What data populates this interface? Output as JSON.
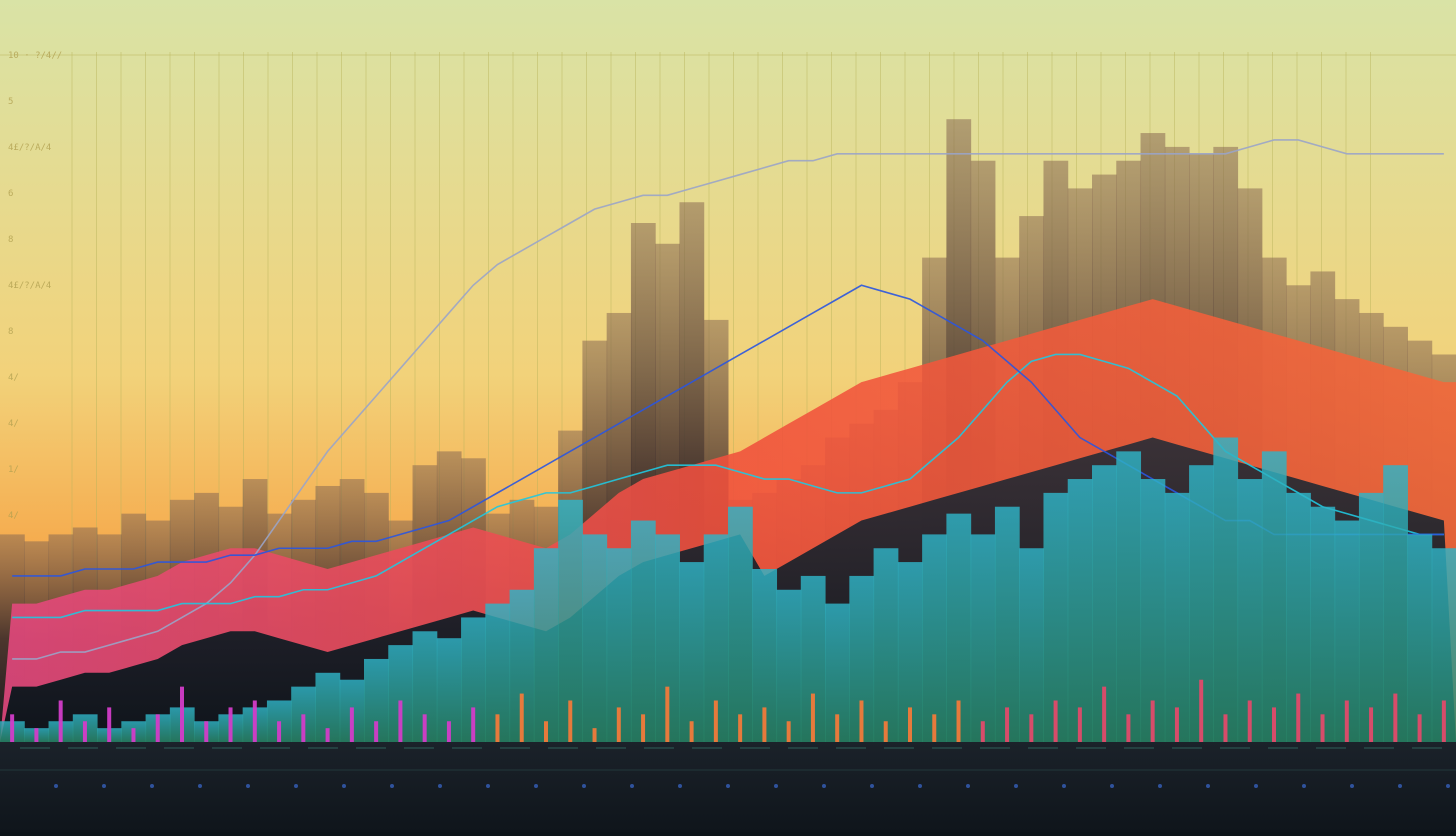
{
  "colors": {
    "sky_top": "#d9e3a6",
    "sky_mid": "#f2d27a",
    "sky_horizon": "#f79a3a",
    "grid_line": "#b9b35a",
    "dark_silhouette": "#1c1d22",
    "red_ridge": "#f0503c",
    "pink_ridge": "#f04a7a",
    "teal_bars": "#33b3b8",
    "cyan_line": "#20c8e0",
    "blue_line": "#2a55e0",
    "magenta_spikes": "#d23cc8",
    "floor": "#11181e"
  },
  "axis_labels_left": [
    "10 · ?/4//",
    "5",
    "4£/?/A/4",
    "6",
    "8",
    "4£/?/A/4",
    "8",
    "4/",
    "4/",
    "1/",
    "4/"
  ],
  "chart_data": {
    "type": "area",
    "title": "",
    "xlabel": "",
    "ylabel": "",
    "grid": true,
    "x_count": 60,
    "xlim": [
      0,
      60
    ],
    "ylim": [
      0,
      100
    ],
    "series": [
      {
        "kind": "bars",
        "values": [
          30,
          29,
          30,
          31,
          30,
          33,
          32,
          35,
          36,
          34,
          38,
          33,
          35,
          37,
          38,
          36,
          32,
          40,
          42,
          41,
          33,
          35,
          34,
          45,
          58,
          62,
          75,
          72,
          78,
          61,
          35,
          36,
          38,
          40,
          44,
          46,
          48,
          52,
          70,
          90,
          84,
          70,
          76,
          84,
          80,
          82,
          84,
          88,
          86,
          85,
          86,
          80,
          70,
          66,
          68,
          64,
          62,
          60,
          58,
          56
        ]
      },
      {
        "kind": "area",
        "values": [
          20,
          20,
          21,
          22,
          22,
          23,
          24,
          26,
          27,
          28,
          28,
          27,
          26,
          25,
          26,
          27,
          28,
          29,
          30,
          31,
          30,
          29,
          28,
          30,
          33,
          36,
          38,
          39,
          40,
          41,
          42,
          44,
          46,
          48,
          50,
          52,
          53,
          54,
          55,
          56,
          57,
          58,
          59,
          60,
          61,
          62,
          63,
          64,
          63,
          62,
          61,
          60,
          59,
          58,
          57,
          56,
          55,
          54,
          53,
          52
        ]
      },
      {
        "kind": "bars",
        "values": [
          3,
          2,
          3,
          4,
          2,
          3,
          4,
          5,
          3,
          4,
          5,
          6,
          8,
          10,
          9,
          12,
          14,
          16,
          15,
          18,
          20,
          22,
          28,
          35,
          30,
          28,
          32,
          30,
          26,
          30,
          34,
          25,
          22,
          24,
          20,
          24,
          28,
          26,
          30,
          33,
          30,
          34,
          28,
          36,
          38,
          40,
          42,
          38,
          36,
          40,
          44,
          38,
          42,
          36,
          34,
          32,
          36,
          40,
          30,
          28
        ]
      },
      {
        "kind": "line",
        "values": [
          12,
          12,
          13,
          13,
          14,
          15,
          16,
          18,
          20,
          23,
          27,
          32,
          37,
          42,
          46,
          50,
          54,
          58,
          62,
          66,
          69,
          71,
          73,
          75,
          77,
          78,
          79,
          79,
          80,
          81,
          82,
          83,
          84,
          84,
          85,
          85,
          85,
          85,
          85,
          85,
          85,
          85,
          85,
          85,
          85,
          85,
          85,
          85,
          85,
          85,
          85,
          86,
          87,
          87,
          86,
          85,
          85,
          85,
          85,
          85
        ]
      },
      {
        "kind": "line",
        "values": [
          18,
          18,
          18,
          19,
          19,
          19,
          19,
          20,
          20,
          20,
          21,
          21,
          22,
          22,
          23,
          24,
          26,
          28,
          30,
          32,
          34,
          35,
          36,
          36,
          37,
          38,
          39,
          40,
          40,
          40,
          39,
          38,
          38,
          37,
          36,
          36,
          37,
          38,
          41,
          44,
          48,
          52,
          55,
          56,
          56,
          55,
          54,
          52,
          50,
          46,
          42,
          40,
          38,
          36,
          34,
          33,
          32,
          31,
          30,
          30
        ]
      },
      {
        "kind": "line",
        "values": [
          24,
          24,
          24,
          25,
          25,
          25,
          26,
          26,
          26,
          27,
          27,
          28,
          28,
          28,
          29,
          29,
          30,
          31,
          32,
          34,
          36,
          38,
          40,
          42,
          44,
          46,
          48,
          50,
          52,
          54,
          56,
          58,
          60,
          62,
          64,
          66,
          65,
          64,
          62,
          60,
          58,
          55,
          52,
          48,
          44,
          42,
          40,
          38,
          36,
          34,
          32,
          32,
          30,
          30,
          30,
          30,
          30,
          30,
          30,
          30
        ]
      },
      {
        "kind": "bars",
        "values": [
          4,
          2,
          6,
          3,
          5,
          2,
          4,
          8,
          3,
          5,
          6,
          3,
          4,
          2,
          5,
          3,
          6,
          4,
          3,
          5,
          4,
          7,
          3,
          6,
          2,
          5,
          4,
          8,
          3,
          6,
          4,
          5,
          3,
          7,
          4,
          6,
          3,
          5,
          4,
          6,
          3,
          5,
          4,
          6,
          5,
          8,
          4,
          6,
          5,
          9,
          4,
          6,
          5,
          7,
          4,
          6,
          5,
          7,
          4,
          6
        ]
      }
    ]
  }
}
